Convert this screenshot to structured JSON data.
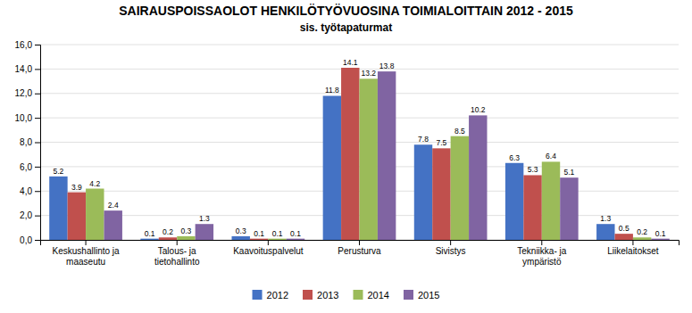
{
  "chart_data": {
    "type": "bar",
    "title": "SAIRAUSPOISSAOLOT HENKILÖTYÖVUOSINA TOIMIALOITTAIN 2012 - 2015",
    "subtitle": "sis. työtapaturmat",
    "categories": [
      "Keskushallinto ja\nmaaseutu",
      "Talous- ja\ntietohallinto",
      "Kaavoituspalvelut",
      "Perusturva",
      "Sivistys",
      "Tekniikka- ja\nympäristö",
      "Liikelaitokset"
    ],
    "series": [
      {
        "name": "2012",
        "color": "#4472C4",
        "values": [
          5.2,
          0.1,
          0.3,
          11.8,
          7.8,
          6.3,
          1.3
        ]
      },
      {
        "name": "2013",
        "color": "#C0504D",
        "values": [
          3.9,
          0.2,
          0.1,
          14.1,
          7.5,
          5.3,
          0.5
        ]
      },
      {
        "name": "2014",
        "color": "#9BBB59",
        "values": [
          4.2,
          0.3,
          0.1,
          13.2,
          8.5,
          6.4,
          0.2
        ]
      },
      {
        "name": "2015",
        "color": "#8064A2",
        "values": [
          2.4,
          1.3,
          0.1,
          13.8,
          10.2,
          5.1,
          0.1
        ]
      }
    ],
    "ylim": [
      0,
      16
    ],
    "yticks": [
      {
        "value": 0,
        "label": "0,0"
      },
      {
        "value": 2,
        "label": "2,0"
      },
      {
        "value": 4,
        "label": "4,0"
      },
      {
        "value": 6,
        "label": "6,0"
      },
      {
        "value": 8,
        "label": "8,0"
      },
      {
        "value": 10,
        "label": "10,0"
      },
      {
        "value": 12,
        "label": "12,0"
      },
      {
        "value": 14,
        "label": "14,0"
      },
      {
        "value": 16,
        "label": "16,0"
      }
    ],
    "grid": true,
    "legend": "bottom",
    "data_labels": true
  }
}
